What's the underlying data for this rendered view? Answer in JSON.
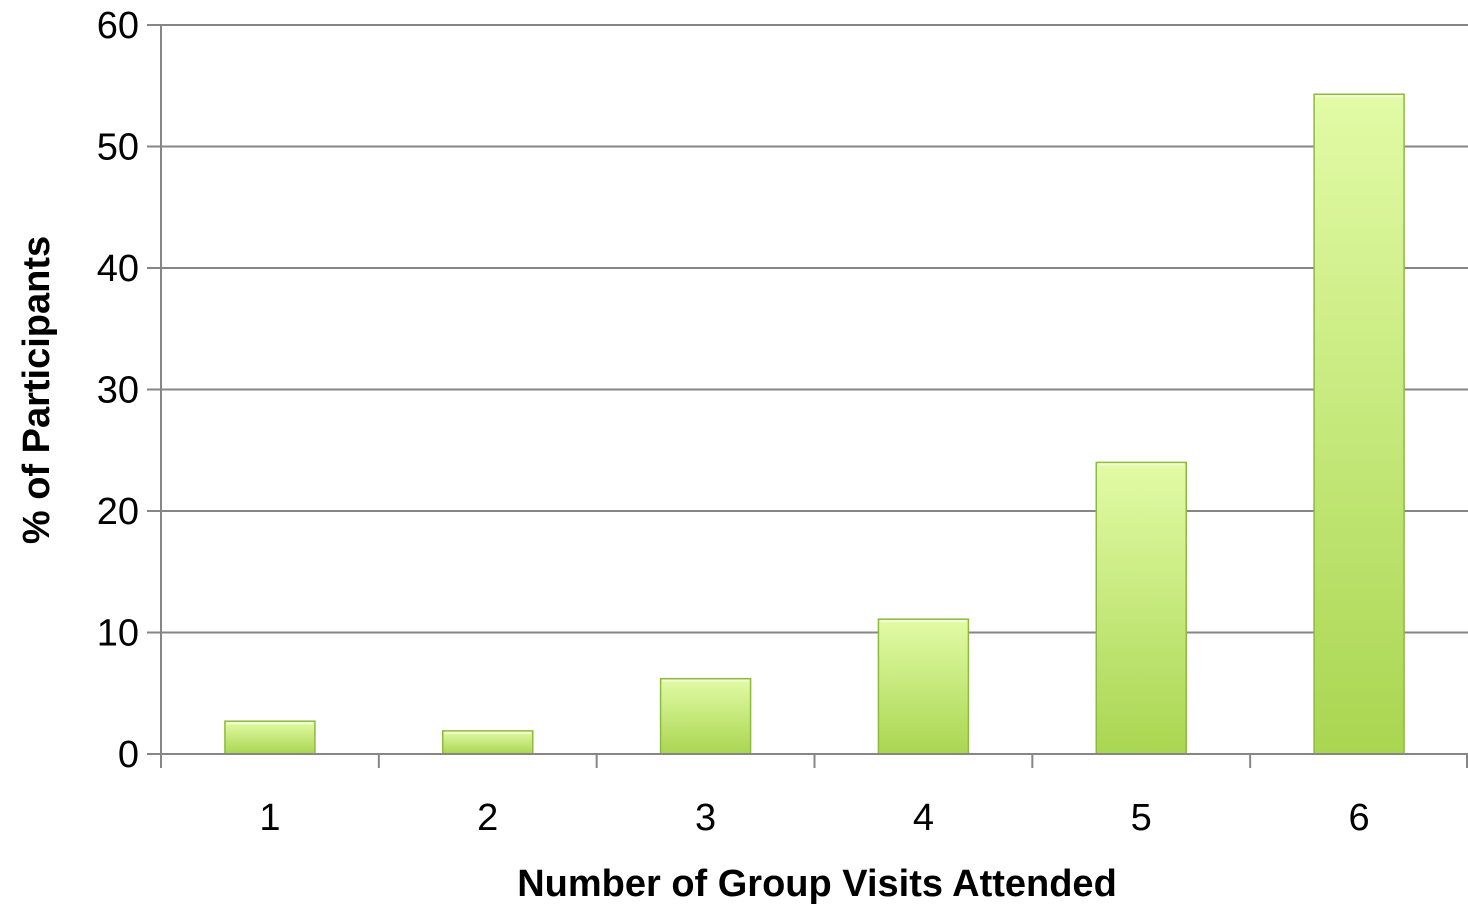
{
  "chart_data": {
    "type": "bar",
    "categories": [
      "1",
      "2",
      "3",
      "4",
      "5",
      "6"
    ],
    "values": [
      2.7,
      1.9,
      6.2,
      11.1,
      24.0,
      54.3
    ],
    "xlabel": "Number of Group Visits Attended",
    "ylabel": "% of Participants",
    "ylim": [
      0,
      60
    ],
    "yticks": [
      "0",
      "10",
      "20",
      "30",
      "40",
      "50",
      "60"
    ],
    "grid": true,
    "legend": "none",
    "colors": {
      "bar_light": "#e2fba6",
      "bar_dark": "#a9d651",
      "bar_edge": "#8fb842",
      "grid": "#868686",
      "axis": "#868686"
    }
  }
}
